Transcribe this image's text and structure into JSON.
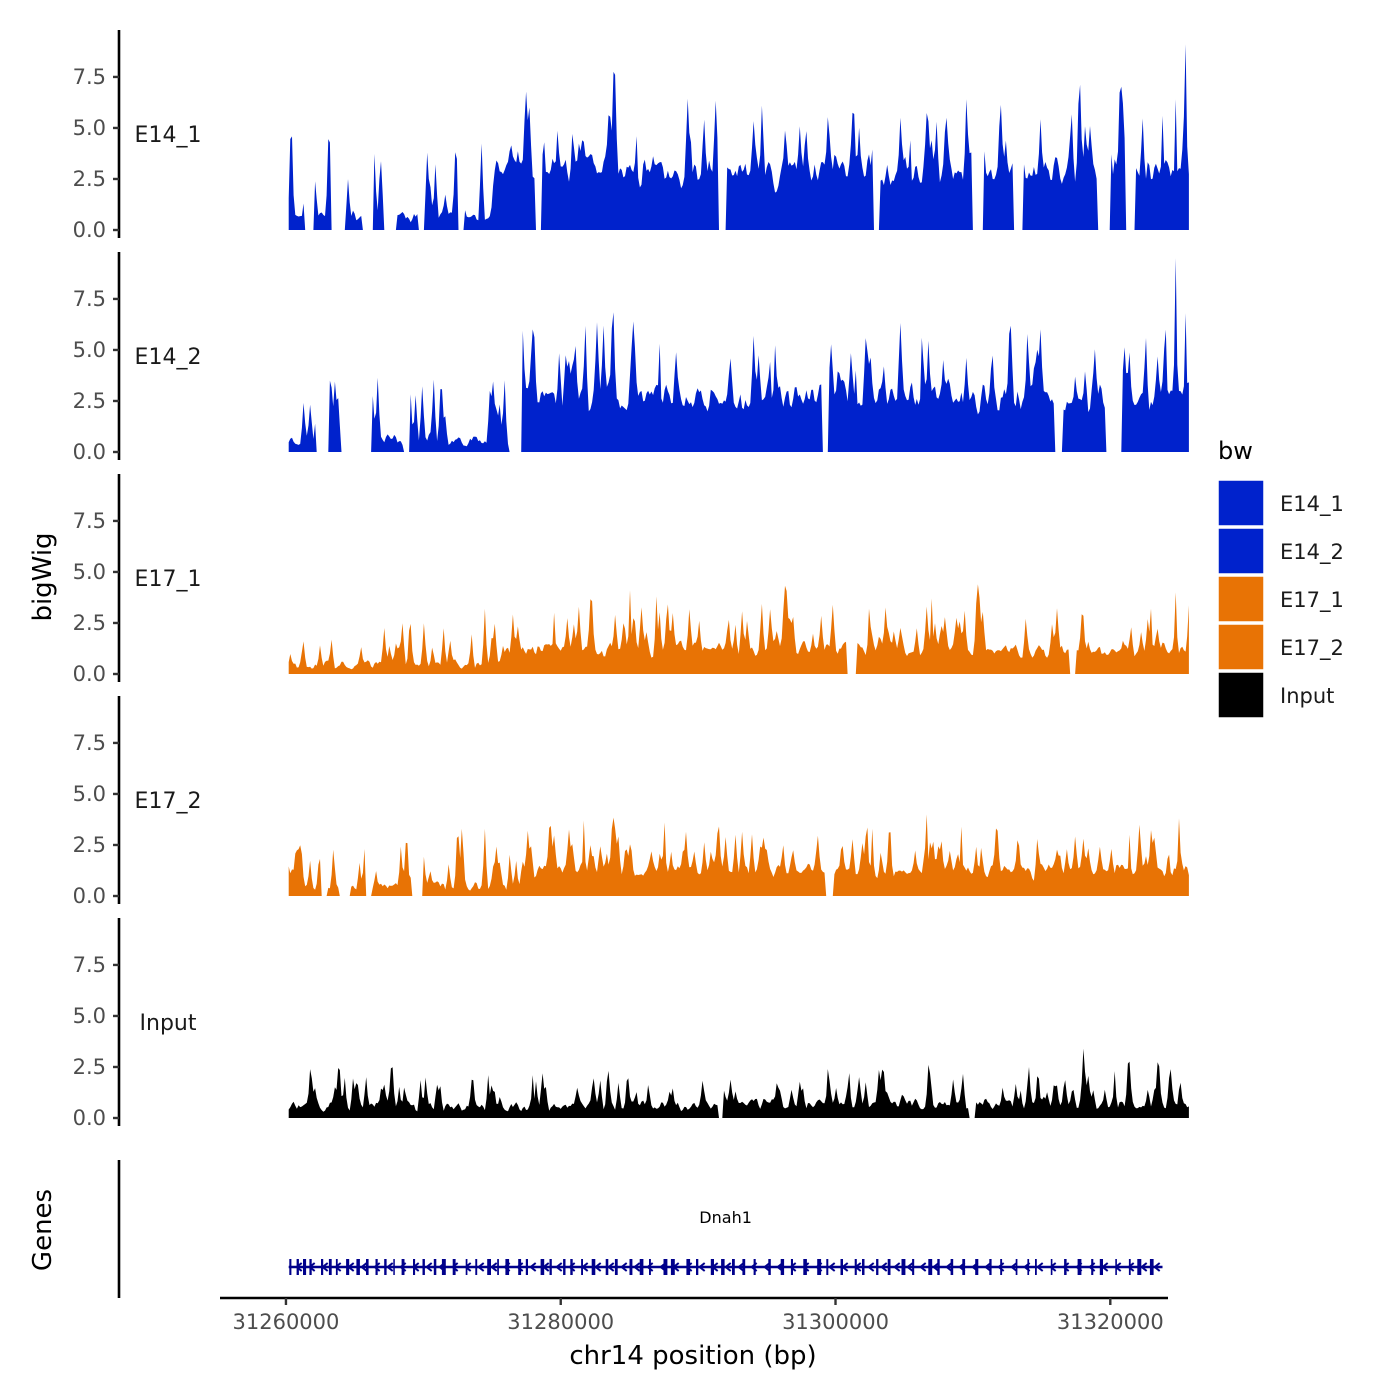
{
  "chart_data": {
    "type": "area",
    "x_axis": {
      "label": "chr14 position (bp)",
      "ticks": [
        31260000,
        31280000,
        31300000,
        31320000
      ],
      "tick_labels": [
        "31260000",
        "31280000",
        "31300000",
        "31320000"
      ],
      "range": [
        31255200,
        31324200
      ],
      "data_extent": [
        31260200,
        31325800
      ]
    },
    "y_axis": {
      "label": "bigWig",
      "ticks": [
        0,
        2.5,
        5,
        7.5
      ],
      "tick_labels": [
        "0.0",
        "2.5",
        "5.0",
        "7.5"
      ],
      "range": [
        0,
        9.8
      ]
    },
    "tracks": [
      {
        "name": "E14_1",
        "color": "#0022CC",
        "seed": 11,
        "base": 1.0,
        "ramp": 2.6,
        "ramp_start": 31275000,
        "peak_prob": 0.14,
        "peak_scale": 1.9,
        "gaps": [
          [
            31261300,
            31262000
          ],
          [
            31263300,
            31264300
          ],
          [
            31265600,
            31266400
          ],
          [
            31267100,
            31268000
          ],
          [
            31269600,
            31270100
          ],
          [
            31272500,
            31273000
          ],
          [
            31278100,
            31278600
          ],
          [
            31291500,
            31292000
          ],
          [
            31302800,
            31303200
          ],
          [
            31310000,
            31310800
          ],
          [
            31312900,
            31313600
          ],
          [
            31319100,
            31320000
          ],
          [
            31321100,
            31321800
          ]
        ],
        "peaks": [
          [
            31261500,
            0.9
          ],
          [
            31263200,
            1.6
          ],
          [
            31278800,
            4.3
          ],
          [
            31285500,
            4.6
          ],
          [
            31289500,
            4.3
          ],
          [
            31305500,
            4.4
          ],
          [
            31308000,
            4.8
          ],
          [
            31319800,
            1.0
          ],
          [
            31323800,
            5.6
          ],
          [
            31324800,
            6.4
          ],
          [
            31325500,
            9.1
          ]
        ]
      },
      {
        "name": "E14_2",
        "color": "#0022CC",
        "seed": 23,
        "base": 0.9,
        "ramp": 2.5,
        "ramp_start": 31276500,
        "peak_prob": 0.14,
        "peak_scale": 1.8,
        "gaps": [
          [
            31262200,
            31263100
          ],
          [
            31264000,
            31266200
          ],
          [
            31268500,
            31269000
          ],
          [
            31276200,
            31277200
          ],
          [
            31299000,
            31299500
          ],
          [
            31316000,
            31316500
          ],
          [
            31319700,
            31320800
          ]
        ],
        "peaks": [
          [
            31261800,
            1.3
          ],
          [
            31263800,
            1.2
          ],
          [
            31285300,
            6.4
          ],
          [
            31287200,
            5.3
          ],
          [
            31301500,
            4.0
          ],
          [
            31306300,
            5.6
          ],
          [
            31320800,
            1.6
          ],
          [
            31324000,
            6.0
          ],
          [
            31324800,
            9.5
          ],
          [
            31325500,
            6.8
          ]
        ]
      },
      {
        "name": "E17_1",
        "color": "#E87305",
        "seed": 37,
        "base": 0.7,
        "ramp": 0.9,
        "ramp_start": 31276000,
        "peak_prob": 0.2,
        "peak_scale": 1.1,
        "gaps": [
          [
            31300800,
            31301500
          ],
          [
            31317000,
            31317500
          ]
        ],
        "peaks": [
          [
            31274500,
            3.2
          ],
          [
            31279500,
            3.0
          ],
          [
            31285000,
            4.1
          ],
          [
            31287000,
            3.8
          ],
          [
            31302500,
            3.2
          ],
          [
            31307000,
            3.7
          ],
          [
            31323000,
            3.2
          ],
          [
            31324800,
            4.0
          ]
        ]
      },
      {
        "name": "E17_2",
        "color": "#E87305",
        "seed": 53,
        "base": 0.7,
        "ramp": 0.9,
        "ramp_start": 31277000,
        "peak_prob": 0.2,
        "peak_scale": 1.1,
        "gaps": [
          [
            31262600,
            31263000
          ],
          [
            31263900,
            31264700
          ],
          [
            31265800,
            31266200
          ],
          [
            31269100,
            31270000
          ],
          [
            31299300,
            31299800
          ]
        ],
        "peaks": [
          [
            31272800,
            3.3
          ],
          [
            31274500,
            3.3
          ],
          [
            31281700,
            3.7
          ],
          [
            31287600,
            3.6
          ],
          [
            31302700,
            3.3
          ],
          [
            31306600,
            4.0
          ],
          [
            31309200,
            3.4
          ],
          [
            31321400,
            3.0
          ],
          [
            31325000,
            3.8
          ]
        ]
      },
      {
        "name": "Input",
        "color": "#000000",
        "seed": 71,
        "base": 0.8,
        "ramp": 0.15,
        "ramp_start": 31290000,
        "peak_prob": 0.2,
        "peak_scale": 0.9,
        "gaps": [
          [
            31291500,
            31291800
          ],
          [
            31309700,
            31310200
          ]
        ],
        "peaks": [
          [
            31274700,
            2.1
          ],
          [
            31278000,
            2.1
          ],
          [
            31299500,
            2.4
          ],
          [
            31301000,
            2.2
          ],
          [
            31306800,
            2.6
          ],
          [
            31318000,
            3.4
          ],
          [
            31320300,
            2.3
          ]
        ]
      }
    ],
    "legend": {
      "title": "bw",
      "entries": [
        {
          "name": "E14_1",
          "color": "#0022CC"
        },
        {
          "name": "E14_2",
          "color": "#0022CC"
        },
        {
          "name": "E17_1",
          "color": "#E87305"
        },
        {
          "name": "E17_2",
          "color": "#E87305"
        },
        {
          "name": "Input",
          "color": "#000000"
        }
      ],
      "position": "right"
    },
    "genes": {
      "panel_label": "Genes",
      "items": [
        {
          "name": "Dnah1",
          "start": 31260200,
          "end": 31323800,
          "strand": "-",
          "color": "#00008B",
          "exon_count": 78
        }
      ]
    }
  }
}
